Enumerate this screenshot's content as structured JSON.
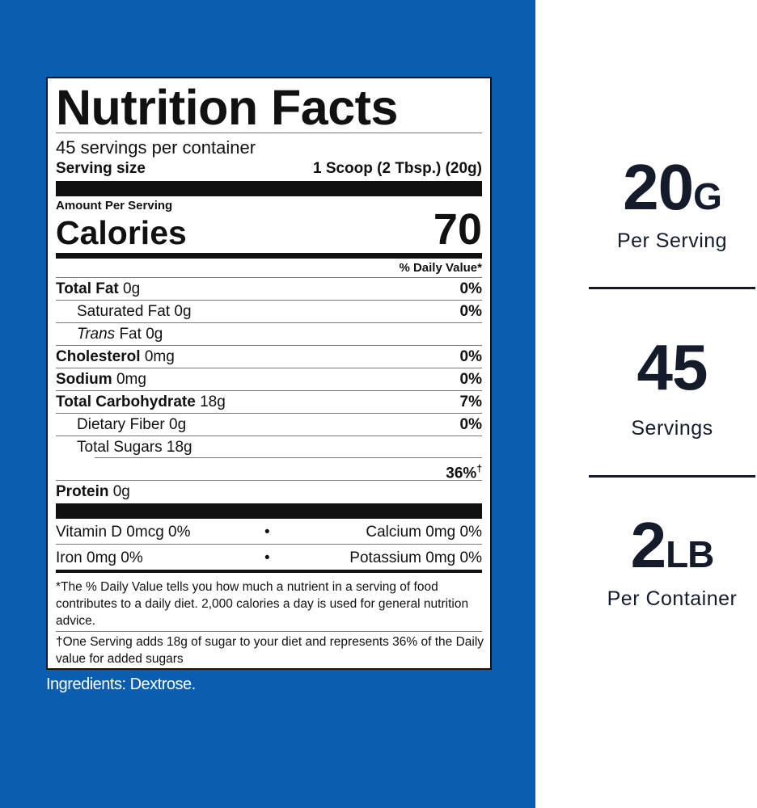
{
  "label": {
    "title": "Nutrition Facts",
    "servings": "45 servings per container",
    "serving_size_label": "Serving size",
    "serving_size_value": "1 Scoop (2 Tbsp.) (20g)",
    "amount_per_serving": "Amount Per Serving",
    "calories_label": "Calories",
    "calories_value": "70",
    "daily_value_header": "% Daily Value*",
    "total_fat": {
      "name": "Total Fat",
      "amount": "0g",
      "dv": "0%"
    },
    "saturated_fat": {
      "name": "Saturated Fat",
      "amount": "0g",
      "dv": "0%"
    },
    "trans_fat": {
      "prefix": "Trans",
      "name": "Fat",
      "amount": "0g"
    },
    "cholesterol": {
      "name": "Cholesterol",
      "amount": "0mg",
      "dv": "0%"
    },
    "sodium": {
      "name": "Sodium",
      "amount": "0mg",
      "dv": "0%"
    },
    "total_carbohydrate": {
      "name": "Total Carbohydrate",
      "amount": "18g",
      "dv": "7%"
    },
    "dietary_fiber": {
      "name": "Dietary Fiber",
      "amount": "0g",
      "dv": "0%"
    },
    "total_sugars": {
      "name": "Total Sugars",
      "amount": "18g",
      "added_dv": "36%",
      "added_mark": "†"
    },
    "protein": {
      "name": "Protein",
      "amount": "0g"
    },
    "vitamins": [
      [
        {
          "name": "Vitamin D",
          "amount": "0mcg",
          "dv": "0%"
        },
        {
          "name": "Calcium",
          "amount": "0mg",
          "dv": "0%"
        }
      ],
      [
        {
          "name": "Iron",
          "amount": "0mg",
          "dv": "0%"
        },
        {
          "name": "Potassium",
          "amount": "0mg",
          "dv": "0%"
        }
      ]
    ],
    "bullet": "•",
    "footnote": "*The % Daily Value tells you how much a nutrient in a serving of food contributes to a daily diet.  2,000 calories a day is used for general nutrition advice.",
    "sugar_footnote": "†One Serving adds 18g of sugar to your diet and represents 36% of the Daily value for added sugars"
  },
  "ingredients": "Ingredients: Dextrose.",
  "stats": [
    {
      "number": "20",
      "unit": "G",
      "caption": "Per Serving"
    },
    {
      "number": "45",
      "caption": "Servings"
    },
    {
      "number": "2",
      "unit": "LB",
      "caption": "Per Container"
    }
  ]
}
